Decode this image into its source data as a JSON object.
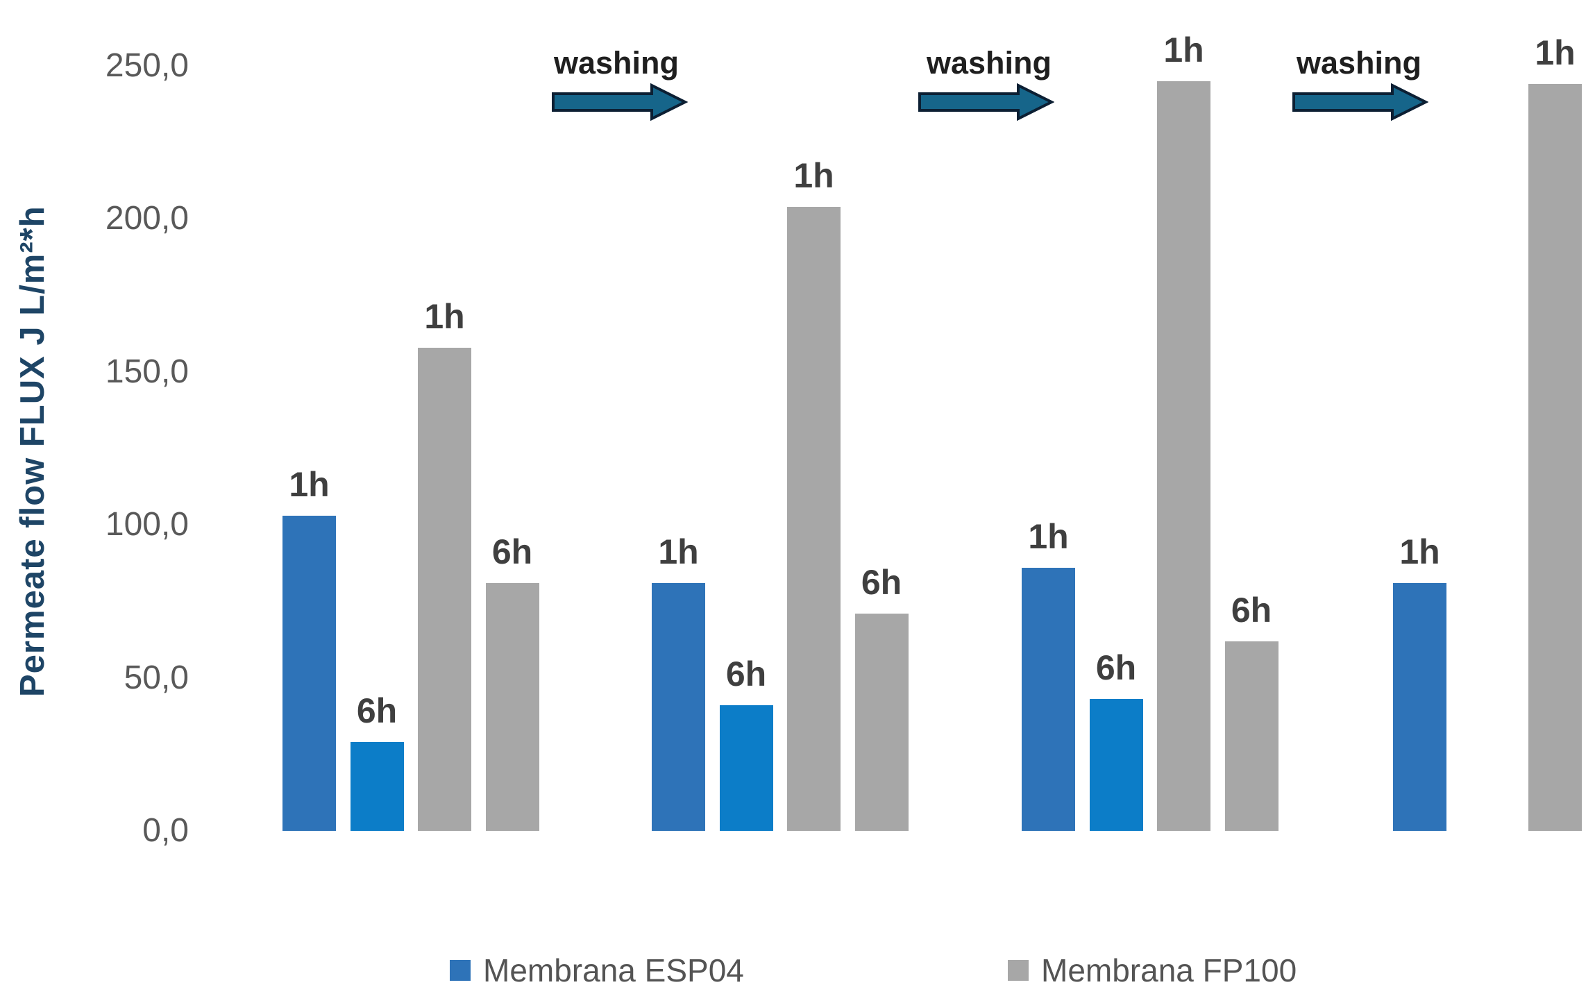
{
  "chart_data": {
    "type": "bar",
    "title": "",
    "xlabel": "",
    "ylabel": "Permeate flow FLUX  J L/m²*h",
    "ylim": [
      0,
      250
    ],
    "grid": false,
    "background": "#ffffff",
    "y_ticks": [
      {
        "value": 250,
        "label": "250,0"
      },
      {
        "value": 200,
        "label": "200,0"
      },
      {
        "value": 150,
        "label": "150,0"
      },
      {
        "value": 100,
        "label": "100,0"
      },
      {
        "value": 50,
        "label": "50,0"
      },
      {
        "value": 0,
        "label": "0,0"
      }
    ],
    "series": [
      {
        "name": "Membrana ESP04",
        "color": "#2E73B8"
      },
      {
        "name": "Membrana FP100",
        "color": "#A7A7A7"
      }
    ],
    "colors": {
      "esp04_1h": "#2E73B8",
      "esp04_6h": "#0C7DC8",
      "fp100": "#A7A7A7",
      "arrow_fill": "#16658A",
      "arrow_stroke": "#0C1F33",
      "axis_text": "#595959",
      "bar_label_text": "#3F3F3F",
      "ylabel_text": "#1E4566"
    },
    "groups": [
      {
        "bars": [
          {
            "series": "Membrana ESP04",
            "label": "1h",
            "value": 103,
            "slot": 0,
            "color": "#2E73B8"
          },
          {
            "series": "Membrana ESP04",
            "label": "6h",
            "value": 29,
            "slot": 1,
            "color": "#0C7DC8"
          },
          {
            "series": "Membrana FP100",
            "label": "1h",
            "value": 158,
            "slot": 2,
            "color": "#A7A7A7"
          },
          {
            "series": "Membrana FP100",
            "label": "6h",
            "value": 81,
            "slot": 3,
            "color": "#A7A7A7"
          }
        ]
      },
      {
        "bars": [
          {
            "series": "Membrana ESP04",
            "label": "1h",
            "value": 81,
            "slot": 0,
            "color": "#2E73B8"
          },
          {
            "series": "Membrana ESP04",
            "label": "6h",
            "value": 41,
            "slot": 1,
            "color": "#0C7DC8"
          },
          {
            "series": "Membrana FP100",
            "label": "1h",
            "value": 204,
            "slot": 2,
            "color": "#A7A7A7"
          },
          {
            "series": "Membrana FP100",
            "label": "6h",
            "value": 71,
            "slot": 3,
            "color": "#A7A7A7"
          }
        ]
      },
      {
        "bars": [
          {
            "series": "Membrana ESP04",
            "label": "1h",
            "value": 86,
            "slot": 0,
            "color": "#2E73B8"
          },
          {
            "series": "Membrana ESP04",
            "label": "6h",
            "value": 43,
            "slot": 1,
            "color": "#0C7DC8"
          },
          {
            "series": "Membrana FP100",
            "label": "1h",
            "value": 245,
            "slot": 2,
            "color": "#A7A7A7"
          },
          {
            "series": "Membrana FP100",
            "label": "6h",
            "value": 62,
            "slot": 3,
            "color": "#A7A7A7"
          }
        ]
      },
      {
        "bars": [
          {
            "series": "Membrana ESP04",
            "label": "1h",
            "value": 81,
            "slot": 0,
            "color": "#2E73B8"
          },
          {
            "series": "Membrana FP100",
            "label": "1h",
            "value": 244,
            "slot": 2,
            "color": "#A7A7A7"
          }
        ]
      }
    ],
    "annotations": [
      {
        "text": "washing"
      },
      {
        "text": "washing"
      },
      {
        "text": "washing"
      }
    ],
    "legend_position": "bottom",
    "legend": [
      {
        "label": "Membrana ESP04",
        "color": "#2E73B8"
      },
      {
        "label": "Membrana FP100",
        "color": "#A7A7A7"
      }
    ]
  }
}
